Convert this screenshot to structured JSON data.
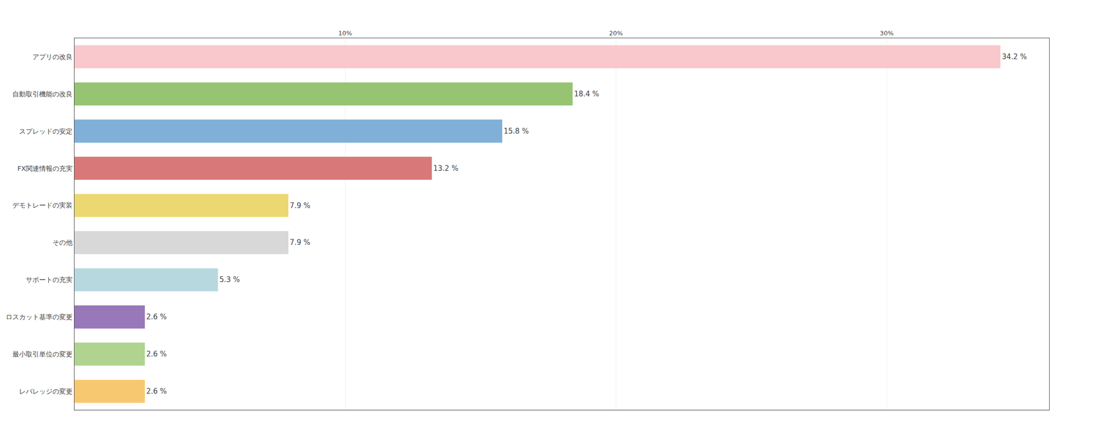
{
  "chart_data": {
    "type": "bar",
    "orientation": "horizontal",
    "categories": [
      "アプリの改良",
      "自動取引機能の改良",
      "スプレッドの安定",
      "FX関連情報の充実",
      "デモトレードの実装",
      "その他",
      "サポートの充実",
      "ロスカット基準の変更",
      "最小取引単位の変更",
      "レバレッジの変更"
    ],
    "values": [
      34.2,
      18.4,
      15.8,
      13.2,
      7.9,
      7.9,
      5.3,
      2.6,
      2.6,
      2.6
    ],
    "colors": [
      "#f9c8cc",
      "#96c472",
      "#80b0d8",
      "#d97878",
      "#ecd870",
      "#d8d8d8",
      "#b8d8e0",
      "#9878b8",
      "#b0d490",
      "#f8c870"
    ],
    "data_labels": true,
    "value_labels": [
      "34.2 %",
      "18.4 %",
      "15.8 %",
      "13.2 %",
      "7.9 %",
      "7.9 %",
      "5.3 %",
      "2.6 %",
      "2.6 %",
      "2.6 %"
    ],
    "xlim": [
      0,
      36
    ],
    "xticks": [
      {
        "value": 10,
        "label": "10%"
      },
      {
        "value": 20,
        "label": "20%"
      },
      {
        "value": 30,
        "label": "30%"
      }
    ],
    "grid": true
  }
}
